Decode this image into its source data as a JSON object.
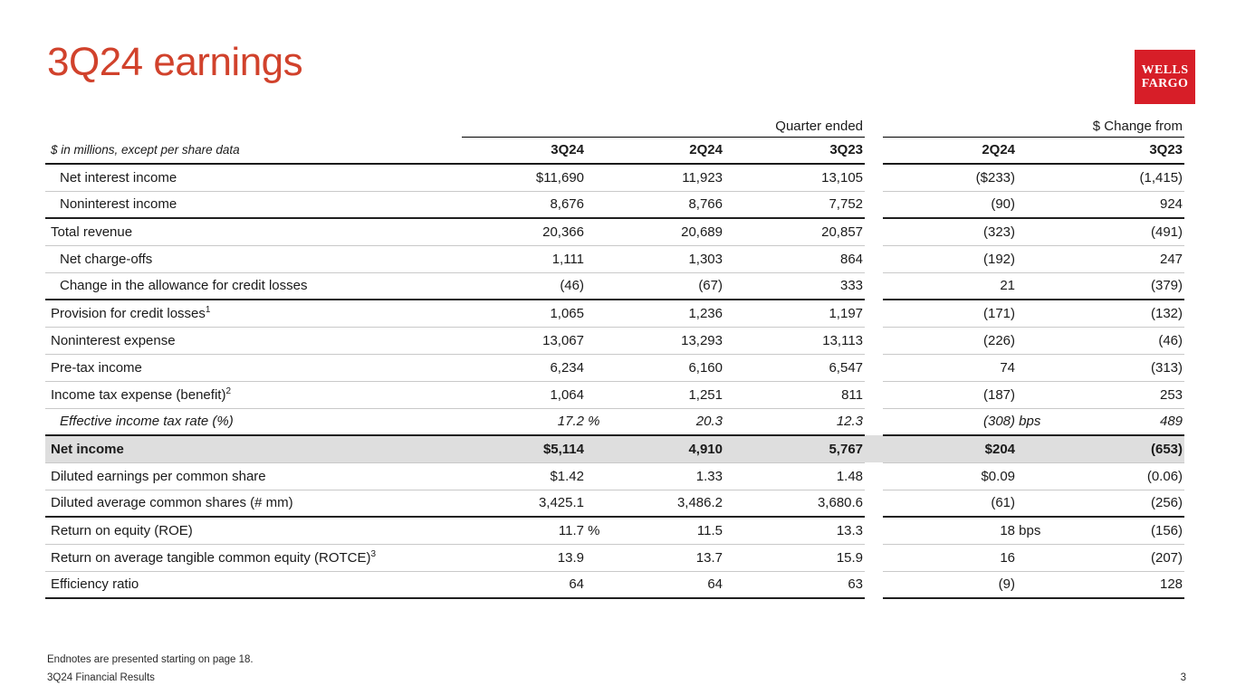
{
  "slide": {
    "title": "3Q24 earnings",
    "logo": {
      "line1": "WELLS",
      "line2": "FARGO",
      "bg_color": "#d71e28"
    },
    "accent_color": "#d1422c",
    "highlight_row_color": "#dedede",
    "footer": {
      "endnote": "Endnotes are presented starting on page 18.",
      "deck": "3Q24 Financial Results",
      "page": "3"
    }
  },
  "table": {
    "group_headers": {
      "quarter": "Quarter ended",
      "change": "$ Change from"
    },
    "note": "$ in millions, except per share data",
    "columns": [
      "3Q24",
      "2Q24",
      "3Q23",
      "2Q24",
      "3Q23"
    ],
    "rows": [
      {
        "label": "Net interest income",
        "indent": true,
        "values": [
          "$11,690",
          "11,923",
          "13,105",
          "($233)",
          "(1,415)"
        ],
        "border": "light"
      },
      {
        "label": "Noninterest income",
        "indent": true,
        "values": [
          "8,676",
          "8,766",
          "7,752",
          "(90)",
          "924"
        ],
        "border": "dark"
      },
      {
        "label": "Total revenue",
        "values": [
          "20,366",
          "20,689",
          "20,857",
          "(323)",
          "(491)"
        ],
        "border": "light"
      },
      {
        "label": "Net charge-offs",
        "indent": true,
        "values": [
          "1,111",
          "1,303",
          "864",
          "(192)",
          "247"
        ],
        "border": "light"
      },
      {
        "label": "Change in the allowance for credit losses",
        "indent": true,
        "values": [
          "(46)",
          "(67)",
          "333",
          "21",
          "(379)"
        ],
        "border": "dark"
      },
      {
        "label": "Provision for credit losses",
        "sup": "1",
        "values": [
          "1,065",
          "1,236",
          "1,197",
          "(171)",
          "(132)"
        ],
        "border": "light"
      },
      {
        "label": "Noninterest expense",
        "values": [
          "13,067",
          "13,293",
          "13,113",
          "(226)",
          "(46)"
        ],
        "border": "light"
      },
      {
        "label": "Pre-tax income",
        "values": [
          "6,234",
          "6,160",
          "6,547",
          "74",
          "(313)"
        ],
        "border": "light"
      },
      {
        "label": "Income tax expense (benefit)",
        "sup": "2",
        "values": [
          "1,064",
          "1,251",
          "811",
          "(187)",
          "253"
        ],
        "border": "light"
      },
      {
        "label": "Effective income tax rate (%)",
        "indent": true,
        "italic": true,
        "values": [
          "17.2",
          "20.3",
          "12.3",
          "(308)",
          "489"
        ],
        "units": [
          "%",
          "",
          "",
          "bps",
          ""
        ],
        "border": "dark"
      },
      {
        "label": "Net income",
        "bold": true,
        "highlight": true,
        "values": [
          "$5,114",
          "4,910",
          "5,767",
          "$204",
          "(653)"
        ],
        "border": "light"
      },
      {
        "label": "Diluted earnings per common share",
        "values": [
          "$1.42",
          "1.33",
          "1.48",
          "$0.09",
          "(0.06)"
        ],
        "border": "light"
      },
      {
        "label": "Diluted average common shares (# mm)",
        "values": [
          "3,425.1",
          "3,486.2",
          "3,680.6",
          "(61)",
          "(256)"
        ],
        "border": "dark"
      },
      {
        "label": "Return on equity (ROE)",
        "values": [
          "11.7",
          "11.5",
          "13.3",
          "18",
          "(156)"
        ],
        "units": [
          "%",
          "",
          "",
          "bps",
          ""
        ],
        "border": "light"
      },
      {
        "label": "Return on average tangible common equity (ROTCE)",
        "sup": "3",
        "values": [
          "13.9",
          "13.7",
          "15.9",
          "16",
          "(207)"
        ],
        "border": "light"
      },
      {
        "label": "Efficiency ratio",
        "values": [
          "64",
          "64",
          "63",
          "(9)",
          "128"
        ],
        "border": "dark"
      }
    ]
  }
}
